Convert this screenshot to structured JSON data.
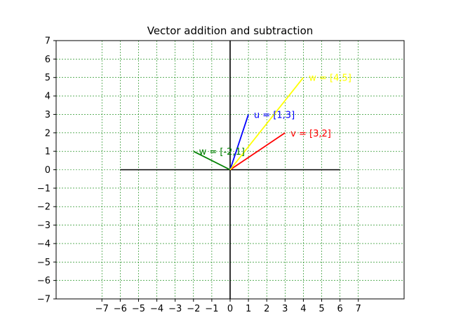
{
  "chart_data": {
    "type": "line",
    "title": "Vector addition and subtraction",
    "xlabel": "",
    "ylabel": "",
    "xlim": [
      -9.5,
      9.5
    ],
    "ylim": [
      -7,
      7
    ],
    "xticks": [
      -7,
      -6,
      -5,
      -4,
      -3,
      -2,
      -1,
      0,
      1,
      2,
      3,
      4,
      5,
      6,
      7
    ],
    "yticks": [
      -7,
      -6,
      -5,
      -4,
      -3,
      -2,
      -1,
      0,
      1,
      2,
      3,
      4,
      5,
      6,
      7
    ],
    "grid": true,
    "grid_color": "#008000",
    "axis_lines": [
      {
        "name": "horizontal-axis",
        "points": [
          [
            -6,
            0
          ],
          [
            6,
            0
          ]
        ],
        "color": "#000000"
      },
      {
        "name": "vertical-axis",
        "points": [
          [
            0,
            -7
          ],
          [
            0,
            7
          ]
        ],
        "color": "#000000"
      }
    ],
    "series": [
      {
        "name": "u = [1,3]",
        "points": [
          [
            0,
            0
          ],
          [
            1,
            3
          ]
        ],
        "color": "#0000ff",
        "label_at": [
          1.3,
          3
        ]
      },
      {
        "name": "v = [3,2]",
        "points": [
          [
            0,
            0
          ],
          [
            3,
            2
          ]
        ],
        "color": "#ff0000",
        "label_at": [
          3.3,
          2
        ]
      },
      {
        "name": "w = [-2,1]",
        "points": [
          [
            0,
            0
          ],
          [
            -2,
            1
          ]
        ],
        "color": "#008000",
        "label_at": [
          -1.7,
          1
        ]
      },
      {
        "name": "w = [4,5]",
        "points": [
          [
            0,
            0
          ],
          [
            4,
            5
          ]
        ],
        "color": "#ffff00",
        "label_at": [
          4.3,
          5
        ]
      }
    ]
  }
}
